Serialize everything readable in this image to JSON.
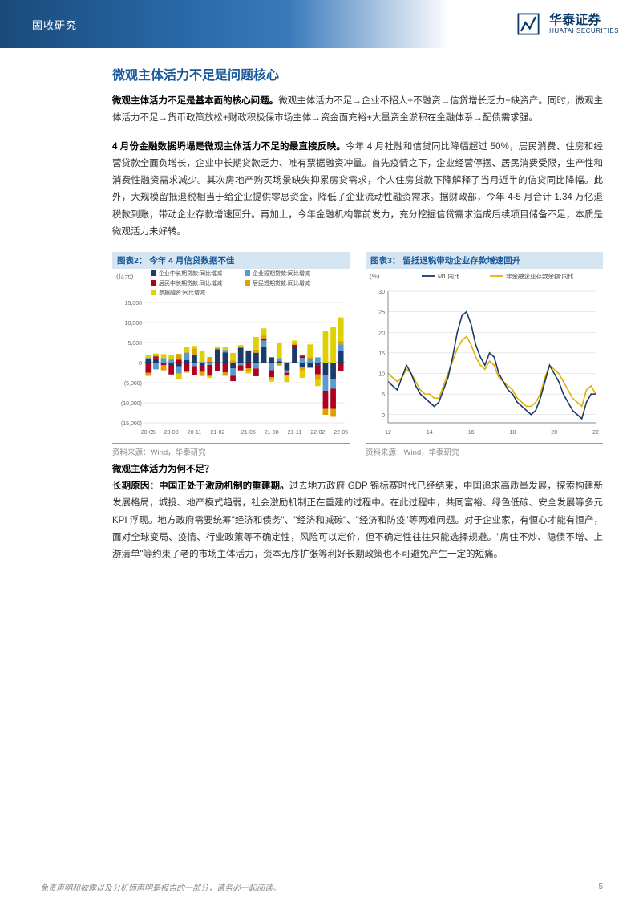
{
  "header": {
    "category": "固收研究",
    "company_cn": "华泰证券",
    "company_en": "HUATAI SECURITIES"
  },
  "section_title": "微观主体活力不足是问题核心",
  "para1": {
    "bold": "微观主体活力不足是基本面的核心问题。",
    "text": "微观主体活力不足→企业不招人+不融资→信贷增长乏力+缺资产。同时，微观主体活力不足→货币政策放松+财政积极保市场主体→资金面充裕+大量资金淤积在金融体系→配债需求强。"
  },
  "para2": {
    "bold": "4 月份金融数据坍塌是微观主体活力不足的最直接反映。",
    "text": "今年 4 月社融和信贷同比降幅超过 50%，居民消费、住房和经营贷款全面负增长，企业中长期贷款乏力、唯有票据融资冲量。首先疫情之下，企业经营停摆、居民消费受限，生产性和消费性融资需求减少。其次房地产购买场景缺失抑累房贷需求，个人住房贷款下降解释了当月近半的信贷同比降幅。此外，大规模留抵退税相当于给企业提供零息资金，降低了企业流动性融资需求。据财政部，今年 4-5 月合计 1.34 万亿退税款到账，带动企业存款增速回升。再加上，今年金融机构靠前发力，充分挖掘信贷需求造成后续项目储备不足，本质是微观活力未好转。"
  },
  "chart2": {
    "title": "图表2： 今年 4 月信贷数据不佳",
    "ylabel": "(亿元)",
    "legend": [
      "企业中长期贷款:同比增减",
      "企业短期贷款:同比增减",
      "居民中长期贷款:同比增减",
      "居民短期贷款:同比增减",
      "票据融资:同比增减"
    ],
    "legend_colors": [
      "#1a3a6a",
      "#5a9acc",
      "#b00020",
      "#e0a000",
      "#e0d000"
    ],
    "x_labels": [
      "20-05",
      "20-08",
      "20-11",
      "21-02",
      "21-05",
      "21-08",
      "21-11",
      "22-02",
      "22-05"
    ],
    "y_ticks": [
      -15000,
      -10000,
      -5000,
      0,
      5000,
      10000,
      15000
    ],
    "source": "资料来源：Wind，华泰研究",
    "grid_color": "#d0d0d0",
    "bg": "#ffffff"
  },
  "chart3": {
    "title": "图表3： 留抵退税带动企业存款增速回升",
    "ylabel": "(%)",
    "legend": [
      "M1:同比",
      "非金融企业存款余额:同比"
    ],
    "legend_colors": [
      "#1a3a6a",
      "#e0b000"
    ],
    "x_labels": [
      "12",
      "14",
      "16",
      "18",
      "20",
      "22"
    ],
    "y_ticks": [
      0,
      5,
      10,
      15,
      20,
      25,
      30
    ],
    "source": "资料来源：Wind，华泰研究",
    "grid_color": "#d0d0d0",
    "bg": "#ffffff",
    "series_m1": [
      8,
      7,
      6,
      9,
      12,
      10,
      7,
      5,
      4,
      3,
      2,
      3,
      6,
      9,
      14,
      20,
      24,
      25,
      22,
      17,
      14,
      12,
      15,
      14,
      10,
      8,
      6,
      5,
      3,
      2,
      1,
      0,
      1,
      4,
      8,
      12,
      10,
      8,
      5,
      3,
      1,
      0,
      -1,
      3,
      5,
      5
    ],
    "series_dep": [
      10,
      9,
      8,
      9,
      11,
      10,
      8,
      6,
      5,
      5,
      4,
      4,
      7,
      10,
      13,
      16,
      18,
      19,
      17,
      14,
      12,
      11,
      13,
      12,
      9,
      8,
      7,
      6,
      4,
      3,
      2,
      2,
      3,
      5,
      9,
      12,
      11,
      10,
      8,
      6,
      4,
      3,
      2,
      6,
      7,
      5
    ]
  },
  "sub_title": "微观主体活力为何不足？",
  "para3": {
    "bold": "长期原因：中国正处于激励机制的重建期。",
    "text": "过去地方政府 GDP 锦标赛时代已经结束，中国追求高质量发展，探索构建新发展格局，城投、地产模式趋弱，社会激励机制正在重建的过程中。在此过程中，共同富裕、绿色低碳、安全发展等多元 KPI 浮现。地方政府需要统筹\"经济和债务\"、\"经济和减碳\"、\"经济和防疫\"等两难问题。对于企业家，有恒心才能有恒产，面对全球变局、疫情、行业政策等不确定性，风险可以定价，但不确定性往往只能选择规避。\"房住不炒、隐债不增、上游清单\"等约束了老的市场主体活力，资本无序扩张等利好长期政策也不可避免产生一定的短痛。"
  },
  "footer": {
    "disclaimer": "免责声明和披露以及分析师声明是报告的一部分，请务必一起阅读。",
    "page": "5"
  }
}
